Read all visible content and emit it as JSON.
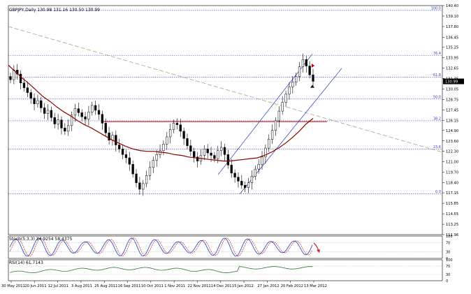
{
  "header": {
    "main_label": "GBPJPY,Daily  130.98 131.16 130.50 130.99",
    "stoch_label": "Stoch(5,3,3) 34.9254 58.4375",
    "rsi_label": "RSI(14) 61.7143"
  },
  "chart_data": {
    "type": "line",
    "symbol": "GBPJPY",
    "timeframe": "Daily",
    "ohlc_last": {
      "open": 130.98,
      "high": 131.16,
      "low": 130.5,
      "close": 130.99
    },
    "current_price_label": "130.99",
    "y_ticks": [
      "140.40",
      "139.10",
      "137.80",
      "136.45",
      "135.25",
      "133.95",
      "132.65",
      "131.35",
      "130.05",
      "128.75",
      "127.45",
      "126.15",
      "124.90",
      "123.60",
      "122.30",
      "121.00",
      "119.70",
      "118.40",
      "117.15",
      "115.85",
      "114.55",
      "113.25",
      "111.96"
    ],
    "ylim": [
      111.96,
      140.4
    ],
    "x_ticks": [
      "30 May 2011",
      "20 Jun 2011",
      "12 Jul 2011",
      "3 Aug 2011",
      "25 Aug 2011",
      "16 Sep 2011",
      "10 Oct 2011",
      "1 Nov 2011",
      "22 Nov 2011",
      "14 Dec 2011",
      "5 Jan 2012",
      "27 Jan 2012",
      "20 Feb 2012",
      "13 Mar 2012"
    ],
    "fib_levels": [
      {
        "label": "100.0",
        "value": 139.8
      },
      {
        "label": "76.4",
        "value": 134.2
      },
      {
        "label": "61.8",
        "value": 131.5
      },
      {
        "label": "50.0",
        "value": 128.8
      },
      {
        "label": "38.2",
        "value": 126.1
      },
      {
        "label": "23.6",
        "value": 122.6
      },
      {
        "label": "0.0",
        "value": 117.05
      }
    ],
    "series": [
      {
        "type": "candles",
        "color": "#000000",
        "values": [
          131.2,
          132.4,
          131.9,
          130.8,
          130.2,
          129.6,
          128.9,
          128.2,
          128.6,
          127.7,
          127.0,
          127.4,
          126.5,
          125.7,
          126.2,
          125.2,
          124.8,
          125.5,
          126.8,
          127.6,
          127.1,
          126.6,
          126.3,
          127.2,
          128.0,
          127.4,
          126.9,
          125.8,
          124.6,
          123.7,
          124.3,
          123.1,
          122.6,
          121.9,
          121.5,
          120.7,
          119.5,
          118.4,
          117.6,
          118.3,
          119.3,
          120.3,
          121.2,
          121.9,
          122.4,
          123.2,
          124.1,
          125.0,
          125.8,
          125.6,
          124.8,
          123.9,
          123.0,
          122.3,
          121.6,
          121.1,
          121.8,
          122.6,
          122.1,
          121.8,
          121.4,
          122.4,
          122.8,
          121.9,
          120.6,
          119.6,
          119.1,
          118.6,
          118.1,
          117.8,
          118.4,
          119.2,
          120.1,
          120.7,
          121.6,
          122.7,
          123.8,
          124.9,
          126.1,
          127.3,
          128.4,
          129.4,
          130.3,
          130.9,
          131.6,
          132.8,
          133.7,
          132.9,
          131.8,
          130.99
        ]
      },
      {
        "type": "line",
        "color": "#8b0000",
        "values": [
          133.0,
          132.2,
          131.4,
          130.7,
          129.9,
          129.1,
          128.5,
          127.8,
          127.2,
          126.7,
          126.1,
          125.6,
          125.2,
          124.7,
          124.2,
          123.7,
          123.3,
          122.9,
          122.6,
          122.4,
          122.3,
          122.3,
          122.2,
          122.1,
          121.9,
          121.8,
          121.6,
          121.5,
          121.4,
          121.3,
          121.2,
          121.1,
          121.1,
          121.2,
          121.3,
          121.4,
          121.5,
          121.8,
          122.2,
          122.7,
          123.3,
          124.0,
          124.8,
          125.7,
          126.4
        ]
      },
      {
        "type": "trendline",
        "color": "#a8b090",
        "values": [
          137.8,
          122.2
        ]
      },
      {
        "type": "hline",
        "color": "#cc0000",
        "value": 126.0
      }
    ],
    "subcharts": [
      {
        "name": "Stoch(5,3,3)",
        "main": 34.9254,
        "signal": 58.4375,
        "levels": [
          "100",
          "70",
          "30",
          "0"
        ]
      },
      {
        "name": "RSI(14)",
        "value": 61.7143,
        "levels": [
          "100",
          "70",
          "30",
          "0"
        ]
      }
    ],
    "grid": false,
    "legend": "none"
  }
}
